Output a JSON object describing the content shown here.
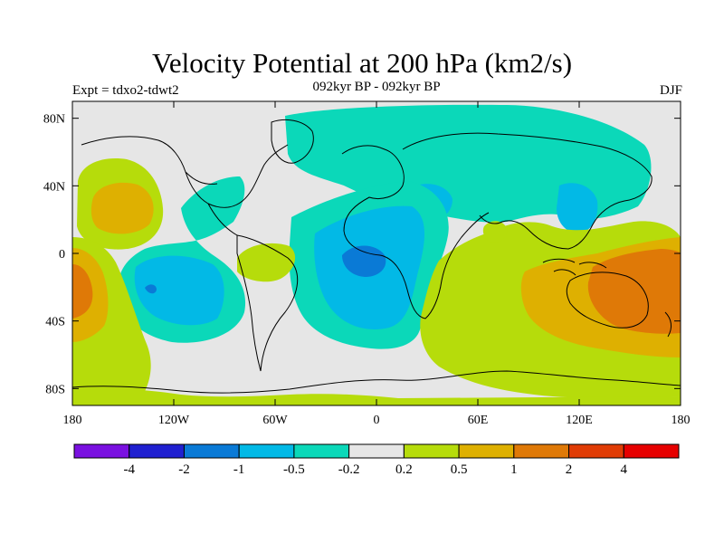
{
  "title": "Velocity Potential at 200 hPa (km2/s)",
  "subtitle": "092kyr BP - 092kyr BP",
  "experiment": "Expt = tdxo2-tdwt2",
  "season": "DJF",
  "axes": {
    "lon_labels": [
      "180",
      "120W",
      "60W",
      "0",
      "60E",
      "120E",
      "180"
    ],
    "lon_values": [
      -180,
      -120,
      -60,
      0,
      60,
      120,
      180
    ],
    "lat_labels": [
      "80N",
      "40N",
      "0",
      "40S",
      "80S"
    ],
    "lat_values": [
      80,
      40,
      0,
      -40,
      -80
    ]
  },
  "colorbar": {
    "labels": [
      "-4",
      "-2",
      "-1",
      "-0.5",
      "-0.2",
      "0.2",
      "0.5",
      "1",
      "2",
      "4"
    ],
    "colors": [
      "#7a11e0",
      "#2020d0",
      "#0a7ad6",
      "#02b9e6",
      "#0bd8b9",
      "#e6e6e6",
      "#b6dc0b",
      "#deb001",
      "#df7907",
      "#e03c05",
      "#e60000"
    ]
  },
  "chart_data": {
    "type": "heatmap",
    "projection": "cylindrical-equidistant",
    "lon_range": [
      -180,
      180
    ],
    "lat_range": [
      -90,
      90
    ],
    "levels": [
      -4,
      -2,
      -1,
      -0.5,
      -0.2,
      0.2,
      0.5,
      1,
      2,
      4
    ],
    "regions": [
      {
        "name": "north-pacific-positive",
        "lon": -135,
        "lat": 30,
        "level_range": [
          0.5,
          1
        ]
      },
      {
        "name": "west-pacific-positive",
        "lon": 175,
        "lat": -20,
        "level_range": [
          1,
          2
        ]
      },
      {
        "name": "australia-positive",
        "lon": 150,
        "lat": -20,
        "level_range": [
          1,
          2
        ]
      },
      {
        "name": "atlantic-africa-negative",
        "lon": -5,
        "lat": -5,
        "level_range": [
          -1,
          -0.5
        ]
      },
      {
        "name": "east-pacific-negative",
        "lon": -115,
        "lat": -20,
        "level_range": [
          -0.5,
          -0.2
        ]
      },
      {
        "name": "eurasia-negative",
        "lon": 60,
        "lat": 60,
        "level_range": [
          -0.5,
          -0.2
        ]
      },
      {
        "name": "south-america-positive",
        "lon": -60,
        "lat": -5,
        "level_range": [
          0.2,
          0.5
        ]
      }
    ]
  }
}
